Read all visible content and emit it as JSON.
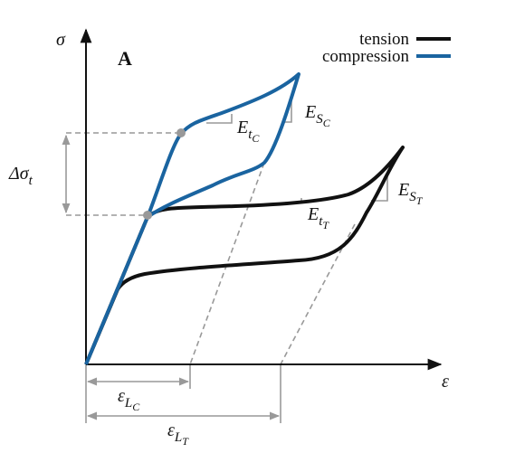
{
  "panel": "A",
  "axes": {
    "y": "σ",
    "x": "ε"
  },
  "legend": [
    {
      "label": "tension"
    },
    {
      "label": "compression"
    }
  ],
  "annotations": {
    "delta_sigma": {
      "base": "Δσ",
      "sub": "t"
    },
    "e_t_c": {
      "base": "E",
      "sub": "t",
      "subsub": "C"
    },
    "e_s_c": {
      "base": "E",
      "sub": "S",
      "subsub": "C"
    },
    "e_t_t": {
      "base": "E",
      "sub": "t",
      "subsub": "T"
    },
    "e_s_t": {
      "base": "E",
      "sub": "S",
      "subsub": "T"
    },
    "eps_l_c": {
      "base": "ε",
      "sub": "L",
      "subsub": "C"
    },
    "eps_l_t": {
      "base": "ε",
      "sub": "L",
      "subsub": "T"
    }
  }
}
